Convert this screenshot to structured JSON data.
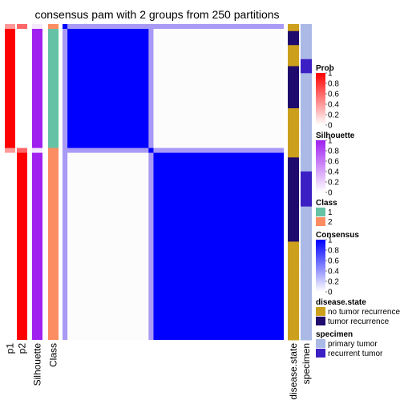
{
  "chart_data": {
    "type": "heatmap",
    "title": "consensus pam with 2 groups from 250 partitions",
    "samples_per_group": [
      18,
      27
    ],
    "rows": [
      {
        "label": "p1",
        "values_by_group": [
          1,
          0
        ],
        "separator_value": 0.4
      },
      {
        "label": "p2",
        "values_by_group": [
          0,
          1
        ],
        "separator_value": 0.6
      },
      {
        "label": "Silhouette",
        "values_by_group": [
          1,
          1
        ],
        "separator_value": 0.1
      },
      {
        "label": "Class",
        "values_by_group": [
          "1",
          "2"
        ]
      }
    ],
    "consensus_matrix": {
      "within_group": 1,
      "between_group": 0,
      "edge_value": 0.5,
      "diagonal_values": [
        1,
        1
      ]
    },
    "annotations": [
      {
        "label": "disease.state",
        "values": [
          "n",
          "t",
          "t",
          "n",
          "n",
          "n",
          "t",
          "t",
          "t",
          "t",
          "t",
          "t",
          "n",
          "n",
          "n",
          "n",
          "n",
          "n",
          "n",
          "t",
          "t",
          "t",
          "t",
          "t",
          "t",
          "t",
          "t",
          "t",
          "t",
          "t",
          "t",
          "n",
          "n",
          "n",
          "n",
          "n",
          "n",
          "n",
          "n",
          "n",
          "n",
          "n",
          "n",
          "n",
          "n"
        ]
      },
      {
        "label": "specimen",
        "values": [
          "p",
          "p",
          "p",
          "p",
          "p",
          "r",
          "r",
          "p",
          "p",
          "p",
          "p",
          "p",
          "p",
          "p",
          "p",
          "p",
          "p",
          "p",
          "p",
          "p",
          "p",
          "r",
          "r",
          "r",
          "r",
          "r",
          "p",
          "p",
          "p",
          "p",
          "p",
          "p",
          "p",
          "p",
          "p",
          "p",
          "p",
          "p",
          "p",
          "p",
          "p",
          "p",
          "p",
          "p",
          "p"
        ]
      }
    ],
    "legends": [
      {
        "title": "Prob",
        "type": "gradient",
        "ticks": [
          "1",
          "0.8",
          "0.6",
          "0.4",
          "0.2",
          "0"
        ],
        "color_high": "#ff0000",
        "color_low": "#ffffff"
      },
      {
        "title": "Silhouette",
        "type": "gradient",
        "ticks": [
          "1",
          "0.8",
          "0.6",
          "0.4",
          "0.2",
          "0"
        ],
        "color_high": "#a020f0",
        "color_low": "#ffffff"
      },
      {
        "title": "Class",
        "type": "categorical",
        "items": [
          {
            "label": "1",
            "color": "#66c2a5"
          },
          {
            "label": "2",
            "color": "#fc8d62"
          }
        ]
      },
      {
        "title": "Consensus",
        "type": "gradient",
        "ticks": [
          "1",
          "0.8",
          "0.6",
          "0.4",
          "0.2",
          "0"
        ],
        "color_high": "#0000ff",
        "color_low": "#ffffff"
      },
      {
        "title": "disease.state",
        "type": "categorical",
        "items": [
          {
            "label": "no tumor recurrence",
            "color": "#cca01d"
          },
          {
            "label": "tumor recurrence",
            "color": "#1f0a6e"
          }
        ]
      },
      {
        "title": "specimen",
        "type": "categorical",
        "items": [
          {
            "label": "primary tumor",
            "color": "#aab9e6"
          },
          {
            "label": "recurrent tumor",
            "color": "#3c1fc4"
          }
        ]
      }
    ],
    "colors": {
      "prob_high": "#ff0000",
      "silhouette_high": "#a020f0",
      "consensus_high": "#0000ff"
    }
  }
}
